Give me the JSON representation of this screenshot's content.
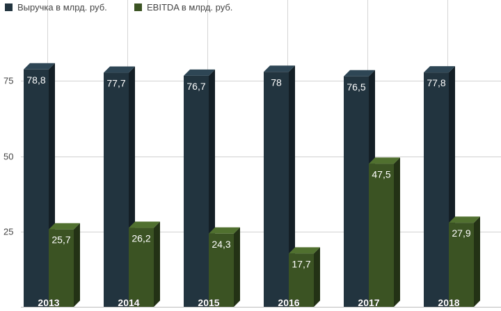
{
  "chart_data": {
    "type": "bar",
    "title": "",
    "xlabel": "",
    "ylabel": "",
    "categories": [
      "2013",
      "2014",
      "2015",
      "2016",
      "2017",
      "2018"
    ],
    "series": [
      {
        "name": "Выручка в млрд. руб.",
        "values": [
          78.8,
          77.7,
          76.7,
          78,
          76.5,
          77.8
        ],
        "labels": [
          "78,8",
          "77,7",
          "76,7",
          "78",
          "76,5",
          "77,8"
        ],
        "color": "#22343f"
      },
      {
        "name": "EBITDA в млрд. руб.",
        "values": [
          25.7,
          26.2,
          24.3,
          17.7,
          47.5,
          27.9
        ],
        "labels": [
          "25,7",
          "26,2",
          "24,3",
          "17,7",
          "47,5",
          "27,9"
        ],
        "color": "#3b5323"
      }
    ],
    "yticks": [
      25,
      50,
      75
    ],
    "ylim": [
      0,
      100
    ],
    "grid": true,
    "legend_position": "top-left",
    "bar_style": "3d"
  }
}
